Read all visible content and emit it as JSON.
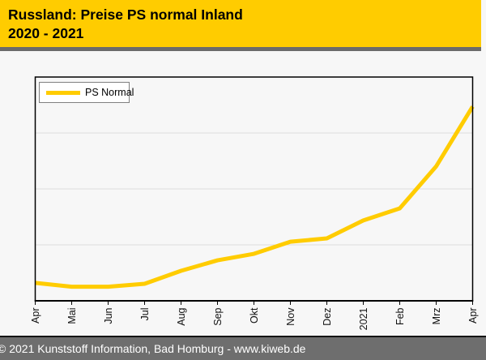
{
  "header": {
    "title_line1": "Russland: Preise PS normal Inland",
    "title_line2": "2020 - 2021",
    "bg_color": "#FFCC00",
    "separator_color": "#6B6B6B",
    "text_color": "#000000"
  },
  "footer": {
    "text": "© 2021 Kunststoff Information, Bad Homburg - www.kiweb.de",
    "bg_color": "#6E6E6E",
    "top_border_color": "#141414",
    "text_color": "#FFFFFF"
  },
  "chart_data": {
    "type": "line",
    "title": "Russland: Preise PS normal Inland 2020 - 2021",
    "xlabel": "",
    "ylabel": "",
    "categories": [
      "Apr",
      "Mai",
      "Jun",
      "Jul",
      "Aug",
      "Sep",
      "Okt",
      "Nov",
      "Dez",
      "2021",
      "Feb",
      "Mrz",
      "Apr"
    ],
    "series": [
      {
        "name": "PS Normal",
        "color": "#FFCC00",
        "values": [
          8.0,
          6.3,
          6.3,
          7.6,
          13.4,
          18.1,
          21.0,
          26.4,
          27.9,
          35.9,
          41.3,
          60.1,
          86.8
        ]
      }
    ],
    "value_scale": "relative-percent-of-plot-height (no numeric y-axis labels shown)",
    "ylim": [
      0,
      100
    ],
    "y_axis_labels_visible": false,
    "x_tick_label_rotation_deg": -90,
    "gridlines": {
      "y_values": [
        25,
        50,
        75
      ],
      "color": "#DCDCDC"
    },
    "plot_border_color": "#000000",
    "plot_bg_color": "#F7F7F7",
    "legend": {
      "position": "top-left"
    }
  }
}
